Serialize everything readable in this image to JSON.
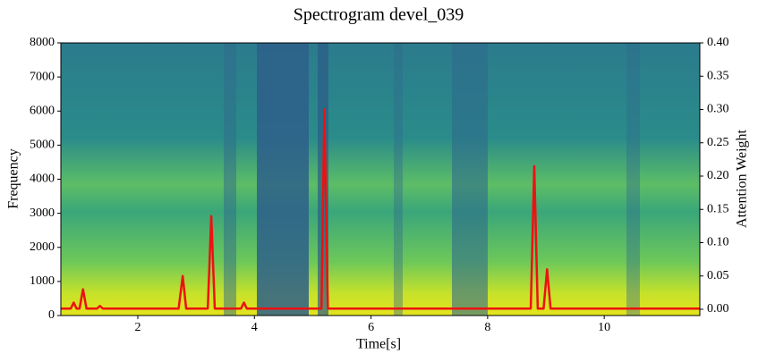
{
  "chart_data": {
    "type": "line",
    "title": "Spectrogram devel_039",
    "xlabel": "Time[s]",
    "ylabel": "Frequency",
    "y2label": "Attention Weight",
    "x": [
      0.68,
      0.85,
      0.9,
      0.95,
      1.0,
      1.06,
      1.12,
      1.3,
      1.35,
      1.4,
      2.7,
      2.77,
      2.83,
      3.2,
      3.26,
      3.32,
      3.77,
      3.82,
      3.87,
      5.15,
      5.2,
      5.26,
      8.74,
      8.8,
      8.86,
      8.96,
      9.02,
      9.08,
      11.64
    ],
    "series": [
      {
        "color": "#ee1111",
        "axis": "y2",
        "values": [
          0.001,
          0.001,
          0.01,
          0.001,
          0.001,
          0.03,
          0.001,
          0.001,
          0.005,
          0.001,
          0.001,
          0.05,
          0.001,
          0.001,
          0.14,
          0.001,
          0.001,
          0.01,
          0.001,
          0.001,
          0.3,
          0.001,
          0.001,
          0.215,
          0.001,
          0.001,
          0.06,
          0.001,
          0.001
        ]
      }
    ],
    "xlim": [
      0.68,
      11.64
    ],
    "xticks": [
      2,
      4,
      6,
      8,
      10
    ],
    "ylim": [
      0,
      8000
    ],
    "yticks": [
      0,
      1000,
      2000,
      3000,
      4000,
      5000,
      6000,
      7000,
      8000
    ],
    "y2lim": [
      -0.0094,
      0.4
    ],
    "y2ticks": [
      {
        "value": 0,
        "label": "0.00"
      },
      {
        "value": 0.05,
        "label": "0.05"
      },
      {
        "value": 0.1,
        "label": "0.10"
      },
      {
        "value": 0.15,
        "label": "0.15"
      },
      {
        "value": 0.2,
        "label": "0.20"
      },
      {
        "value": 0.25,
        "label": "0.25"
      },
      {
        "value": 0.3,
        "label": "0.30"
      },
      {
        "value": 0.35,
        "label": "0.35"
      },
      {
        "value": 0.4,
        "label": "0.40"
      }
    ]
  }
}
